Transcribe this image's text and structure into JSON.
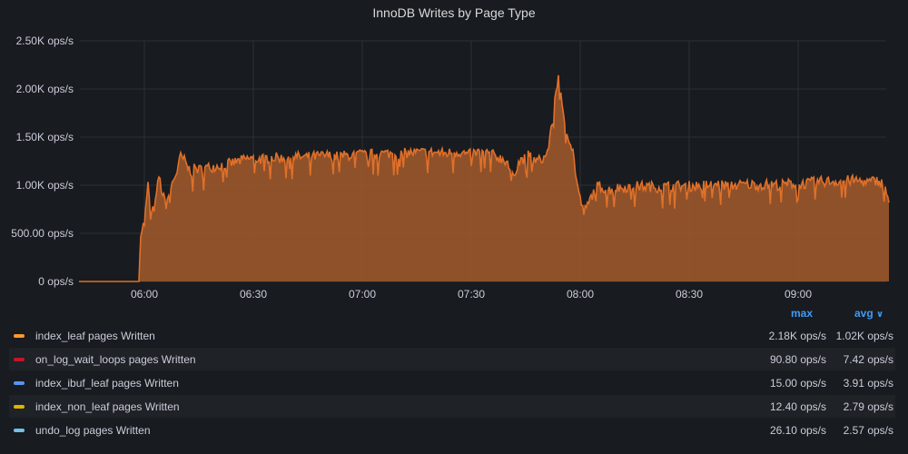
{
  "chart_data": {
    "type": "area",
    "title": "InnoDB Writes by Page Type",
    "y_unit": "ops/s",
    "ylim": [
      0,
      2500
    ],
    "y_ticks": [
      {
        "value": 0,
        "label": "0 ops/s"
      },
      {
        "value": 500,
        "label": "500.00 ops/s"
      },
      {
        "value": 1000,
        "label": "1.00K ops/s"
      },
      {
        "value": 1500,
        "label": "1.50K ops/s"
      },
      {
        "value": 2000,
        "label": "2.00K ops/s"
      },
      {
        "value": 2500,
        "label": "2.50K ops/s"
      }
    ],
    "x_range_minutes": [
      -43,
      117
    ],
    "x_ticks": [
      {
        "minute": 0,
        "label": "06:00"
      },
      {
        "minute": 30,
        "label": "06:30"
      },
      {
        "minute": 60,
        "label": "07:00"
      },
      {
        "minute": 90,
        "label": "07:30"
      },
      {
        "minute": 120,
        "label": "08:00"
      },
      {
        "minute": 150,
        "label": "08:30"
      },
      {
        "minute": 180,
        "label": "09:00"
      }
    ],
    "series_main": {
      "name": "index_leaf pages Written",
      "points": [
        [
          -18,
          0
        ],
        [
          -1.5,
          0
        ],
        [
          -1,
          520
        ],
        [
          0,
          600
        ],
        [
          1,
          1000
        ],
        [
          2,
          700
        ],
        [
          3,
          800
        ],
        [
          4,
          1100
        ],
        [
          5,
          900
        ],
        [
          6,
          800
        ],
        [
          7,
          950
        ],
        [
          8,
          1050
        ],
        [
          9,
          1150
        ],
        [
          10,
          1300
        ],
        [
          11,
          1260
        ],
        [
          12,
          1180
        ],
        [
          13,
          1140
        ],
        [
          14,
          1180
        ],
        [
          15,
          1160
        ],
        [
          17,
          1180
        ],
        [
          20,
          1200
        ],
        [
          23,
          1220
        ],
        [
          26,
          1250
        ],
        [
          29,
          1280
        ],
        [
          32,
          1270
        ],
        [
          35,
          1290
        ],
        [
          38,
          1280
        ],
        [
          41,
          1300
        ],
        [
          44,
          1290
        ],
        [
          47,
          1300
        ],
        [
          50,
          1310
        ],
        [
          53,
          1300
        ],
        [
          56,
          1310
        ],
        [
          59,
          1320
        ],
        [
          62,
          1320
        ],
        [
          65,
          1330
        ],
        [
          68,
          1330
        ],
        [
          71,
          1330
        ],
        [
          74,
          1340
        ],
        [
          77,
          1340
        ],
        [
          80,
          1340
        ],
        [
          83,
          1330
        ],
        [
          86,
          1350
        ],
        [
          89,
          1320
        ],
        [
          92,
          1340
        ],
        [
          95,
          1330
        ],
        [
          98,
          1280
        ],
        [
          100,
          1250
        ],
        [
          101,
          1050
        ],
        [
          102,
          1150
        ],
        [
          103,
          1230
        ],
        [
          104,
          1270
        ],
        [
          105,
          1280
        ],
        [
          106,
          1320
        ],
        [
          107,
          1270
        ],
        [
          108,
          1250
        ],
        [
          110,
          1280
        ],
        [
          111,
          1350
        ],
        [
          112,
          1560
        ],
        [
          113,
          1900
        ],
        [
          114,
          2150
        ],
        [
          115,
          1800
        ],
        [
          116,
          1620
        ],
        [
          117,
          1480
        ],
        [
          118,
          1350
        ],
        [
          119,
          1050
        ],
        [
          120,
          850
        ],
        [
          121,
          720
        ],
        [
          122,
          780
        ],
        [
          123,
          880
        ],
        [
          124,
          950
        ],
        [
          125,
          1000
        ],
        [
          126,
          980
        ],
        [
          128,
          950
        ],
        [
          130,
          970
        ],
        [
          133,
          980
        ],
        [
          136,
          990
        ],
        [
          139,
          985
        ],
        [
          142,
          980
        ],
        [
          145,
          990
        ],
        [
          148,
          995
        ],
        [
          151,
          990
        ],
        [
          154,
          1000
        ],
        [
          157,
          1010
        ],
        [
          160,
          1000
        ],
        [
          163,
          1000
        ],
        [
          166,
          1010
        ],
        [
          169,
          1000
        ],
        [
          172,
          1010
        ],
        [
          175,
          1000
        ],
        [
          178,
          1020
        ],
        [
          181,
          1010
        ],
        [
          184,
          1030
        ],
        [
          187,
          1040
        ],
        [
          190,
          1040
        ],
        [
          193,
          1050
        ],
        [
          196,
          1050
        ],
        [
          199,
          1030
        ],
        [
          202,
          1050
        ],
        [
          203,
          1020
        ],
        [
          204,
          980
        ],
        [
          205,
          820
        ]
      ]
    },
    "legend": {
      "columns": [
        "max",
        "avg"
      ],
      "series": [
        {
          "name": "index_leaf pages Written",
          "color": "#ff9830",
          "max": "2.18K ops/s",
          "avg": "1.02K ops/s"
        },
        {
          "name": "on_log_wait_loops pages Written",
          "color": "#c4162a",
          "max": "90.80 ops/s",
          "avg": "7.42 ops/s"
        },
        {
          "name": "index_ibuf_leaf pages Written",
          "color": "#5794f2",
          "max": "15.00 ops/s",
          "avg": "3.91 ops/s"
        },
        {
          "name": "index_non_leaf pages Written",
          "color": "#e0b400",
          "max": "12.40 ops/s",
          "avg": "2.79 ops/s"
        },
        {
          "name": "undo_log pages Written",
          "color": "#73bfe8",
          "max": "26.10 ops/s",
          "avg": "2.57 ops/s"
        }
      ],
      "sort_indicator": "chevron-down"
    },
    "colors": {
      "area_fill": "#a55a2c",
      "area_line": "#e0702a",
      "grid": "#2c3035",
      "accent": "#3d9cf5"
    }
  }
}
